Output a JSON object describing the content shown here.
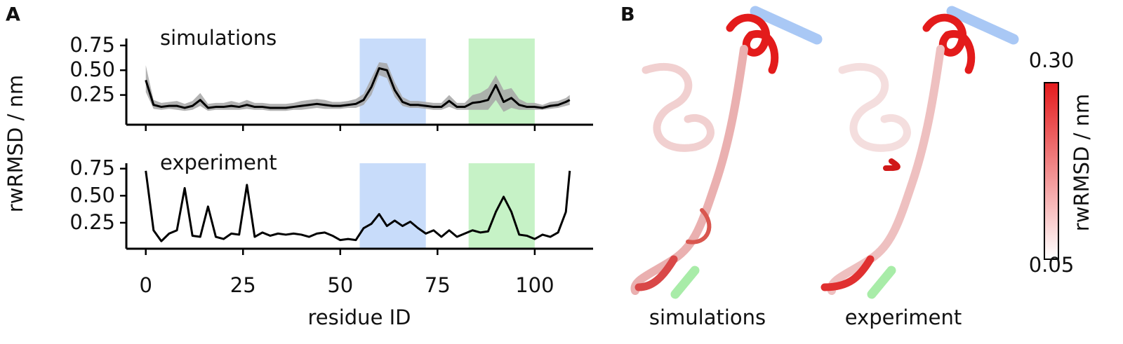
{
  "panel_a": {
    "label": "A"
  },
  "chart_data": [
    {
      "type": "line",
      "title": "simulations",
      "ylabel": "rwRMSD / nm",
      "x": [
        0,
        2,
        4,
        6,
        8,
        10,
        12,
        14,
        16,
        18,
        20,
        22,
        24,
        26,
        28,
        30,
        32,
        34,
        36,
        38,
        40,
        42,
        44,
        46,
        48,
        50,
        52,
        54,
        56,
        58,
        60,
        62,
        64,
        66,
        68,
        70,
        72,
        74,
        76,
        78,
        80,
        82,
        84,
        86,
        88,
        90,
        92,
        94,
        96,
        98,
        100,
        102,
        104,
        106,
        108,
        109
      ],
      "series": [
        {
          "color": "#000000",
          "band_color": "#a6a6a6",
          "values": [
            0.4,
            0.15,
            0.13,
            0.14,
            0.14,
            0.12,
            0.14,
            0.2,
            0.12,
            0.13,
            0.13,
            0.14,
            0.13,
            0.15,
            0.13,
            0.13,
            0.12,
            0.12,
            0.12,
            0.13,
            0.14,
            0.15,
            0.16,
            0.15,
            0.14,
            0.14,
            0.15,
            0.16,
            0.2,
            0.33,
            0.52,
            0.5,
            0.3,
            0.18,
            0.15,
            0.15,
            0.14,
            0.13,
            0.13,
            0.19,
            0.13,
            0.13,
            0.17,
            0.18,
            0.2,
            0.35,
            0.18,
            0.22,
            0.15,
            0.13,
            0.13,
            0.12,
            0.14,
            0.15,
            0.18,
            0.2
          ],
          "lower": [
            0.28,
            0.11,
            0.1,
            0.11,
            0.1,
            0.09,
            0.1,
            0.14,
            0.09,
            0.1,
            0.1,
            0.1,
            0.1,
            0.11,
            0.1,
            0.1,
            0.09,
            0.09,
            0.09,
            0.1,
            0.1,
            0.11,
            0.12,
            0.11,
            0.11,
            0.11,
            0.12,
            0.12,
            0.15,
            0.25,
            0.45,
            0.42,
            0.23,
            0.14,
            0.12,
            0.12,
            0.11,
            0.1,
            0.1,
            0.13,
            0.1,
            0.1,
            0.1,
            0.1,
            0.1,
            0.2,
            0.08,
            0.12,
            0.1,
            0.1,
            0.1,
            0.1,
            0.11,
            0.12,
            0.14,
            0.15
          ],
          "upper": [
            0.55,
            0.2,
            0.17,
            0.18,
            0.19,
            0.16,
            0.19,
            0.27,
            0.16,
            0.17,
            0.17,
            0.19,
            0.17,
            0.2,
            0.17,
            0.17,
            0.16,
            0.16,
            0.16,
            0.17,
            0.19,
            0.2,
            0.21,
            0.2,
            0.18,
            0.18,
            0.19,
            0.21,
            0.26,
            0.42,
            0.58,
            0.57,
            0.38,
            0.23,
            0.19,
            0.19,
            0.18,
            0.17,
            0.17,
            0.25,
            0.17,
            0.17,
            0.25,
            0.27,
            0.32,
            0.45,
            0.3,
            0.32,
            0.21,
            0.17,
            0.17,
            0.15,
            0.18,
            0.19,
            0.22,
            0.25
          ]
        }
      ],
      "spans": [
        {
          "start": 55,
          "end": 72,
          "color": "#c8dcfa"
        },
        {
          "start": 83,
          "end": 100,
          "color": "#c6f2c6"
        }
      ],
      "xlim": [
        -5,
        115
      ],
      "xticks": [
        0,
        25,
        50,
        75,
        100
      ],
      "show_xtick_labels": false,
      "ylim": [
        -0.05,
        0.82
      ],
      "yticks": [
        {
          "value": 0.25,
          "label": "0.25"
        },
        {
          "value": 0.5,
          "label": "0.50"
        },
        0.75
      ]
    },
    {
      "type": "line",
      "title": "experiment",
      "xlabel": "residue ID",
      "x": [
        0,
        2,
        4,
        6,
        8,
        10,
        12,
        14,
        16,
        18,
        20,
        22,
        24,
        26,
        28,
        30,
        32,
        34,
        36,
        38,
        40,
        42,
        44,
        46,
        48,
        50,
        52,
        54,
        56,
        58,
        60,
        62,
        64,
        66,
        68,
        70,
        72,
        74,
        76,
        78,
        80,
        82,
        84,
        86,
        88,
        90,
        92,
        94,
        96,
        98,
        100,
        102,
        104,
        106,
        108,
        109
      ],
      "series": [
        {
          "color": "#000000",
          "values": [
            0.73,
            0.18,
            0.08,
            0.15,
            0.18,
            0.57,
            0.13,
            0.12,
            0.4,
            0.12,
            0.1,
            0.15,
            0.14,
            0.6,
            0.12,
            0.16,
            0.13,
            0.15,
            0.14,
            0.15,
            0.14,
            0.12,
            0.15,
            0.16,
            0.13,
            0.09,
            0.1,
            0.09,
            0.2,
            0.24,
            0.33,
            0.22,
            0.27,
            0.22,
            0.26,
            0.2,
            0.15,
            0.18,
            0.12,
            0.18,
            0.12,
            0.15,
            0.18,
            0.16,
            0.17,
            0.35,
            0.49,
            0.35,
            0.14,
            0.13,
            0.1,
            0.14,
            0.12,
            0.16,
            0.35,
            0.73
          ]
        }
      ],
      "spans": [
        {
          "start": 55,
          "end": 72,
          "color": "#c8dcfa"
        },
        {
          "start": 83,
          "end": 100,
          "color": "#c6f2c6"
        }
      ],
      "xlim": [
        -5,
        115
      ],
      "xticks": [
        0,
        25,
        50,
        75,
        100
      ],
      "show_xtick_labels": true,
      "ylim": [
        0.01,
        0.8
      ],
      "yticks": [
        {
          "value": 0.25,
          "label": "0.25"
        },
        {
          "value": 0.5,
          "label": "0.50"
        },
        0.75
      ]
    }
  ],
  "panel_b": {
    "label": "B",
    "captions": [
      "simulations",
      "experiment"
    ],
    "colorbar": {
      "label": "rwRMSD / nm",
      "lim": [
        0.05,
        0.3
      ],
      "colors": [
        "#ffffff",
        "#e41a1c"
      ],
      "ticks": [
        0.05,
        {
          "value": 0.3,
          "label": "0.30"
        }
      ]
    }
  }
}
